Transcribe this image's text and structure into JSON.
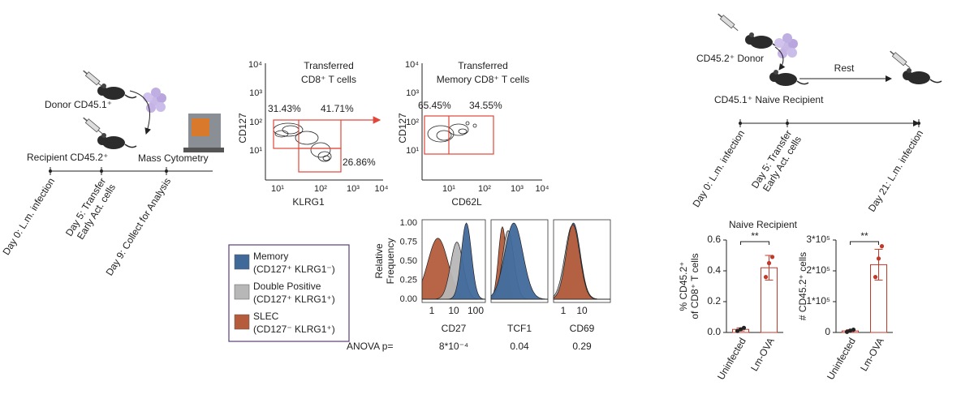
{
  "timeline_left": {
    "donor": "Donor CD45.1⁺",
    "recipient": "Recipient CD45.2⁺",
    "instrument": "Mass Cytometry",
    "days": [
      [
        "Day 0: L.m. infection"
      ],
      [
        "Day 5: Transfer",
        "Early Act. cells"
      ],
      [
        "Day 9: Collect for Analysis"
      ]
    ]
  },
  "flow_plots": [
    {
      "title": [
        "Transferred",
        "CD8⁺ T cells"
      ],
      "x_label": "KLRG1",
      "y_label": "CD127",
      "x_ticks": [
        "10¹",
        "10²",
        "10³",
        "10⁴"
      ],
      "y_ticks": [
        "10¹",
        "10²",
        "10³",
        "10⁴"
      ],
      "gates": [
        "31.43%",
        "41.71%",
        "26.86%"
      ]
    },
    {
      "title": [
        "Transferred",
        "Memory CD8⁺ T cells"
      ],
      "x_label": "CD62L",
      "y_label": "CD127",
      "x_ticks": [
        "10¹",
        "10²",
        "10³",
        "10⁴"
      ],
      "y_ticks": [
        "10¹",
        "10²",
        "10³",
        "10⁴"
      ],
      "gates": [
        "65.45%",
        "34.55%"
      ]
    }
  ],
  "legend": {
    "entries": [
      {
        "label": [
          "Memory",
          "(CD127⁺ KLRG1⁻)"
        ],
        "color": "#40699a"
      },
      {
        "label": [
          "Double Positive",
          "(CD127⁺ KLRG1⁺)"
        ],
        "color": "#b7b7b7"
      },
      {
        "label": [
          "SLEC",
          "(CD127⁻ KLRG1⁺)"
        ],
        "color": "#b45c3c"
      }
    ]
  },
  "histograms": {
    "y_label": [
      "Relative",
      "Frequency"
    ],
    "y_ticks": [
      "1.00",
      "0.75",
      "0.50",
      "0.25",
      "0.00"
    ],
    "anova_label": "ANOVA p=",
    "panels": [
      {
        "marker": "CD27",
        "x_ticks": [
          "1",
          "10",
          "100"
        ],
        "anova": "8*10⁻⁴"
      },
      {
        "marker": "TCF1",
        "anova": "0.04"
      },
      {
        "marker": "CD69",
        "x_ticks": [
          "1",
          "10"
        ],
        "anova": "0.29"
      }
    ]
  },
  "timeline_right": {
    "donor": "CD45.2⁺ Donor",
    "rest": "Rest",
    "recipient": "CD45.1⁺ Naive Recipient",
    "days": [
      [
        "Day 0: L.m. infection"
      ],
      [
        "Day 5: Transfer",
        "Early Act. cells"
      ],
      [
        "Day 21: L.m. infection"
      ]
    ]
  },
  "bar_panel_title": "Naive Recipient",
  "chart_data": [
    {
      "type": "bar",
      "y_label": [
        "% CD45.2⁺",
        "of CD8⁺ T cells"
      ],
      "categories": [
        "Uninfected",
        "Lm-OVA"
      ],
      "values": [
        0.02,
        0.42
      ],
      "errors": [
        0.01,
        0.08
      ],
      "points": [
        [
          0.01,
          0.02,
          0.03
        ],
        [
          0.36,
          0.45,
          0.49
        ]
      ],
      "point_colors": [
        "#222222",
        "#c0392b"
      ],
      "color": "#c0392b",
      "significance": "**",
      "ylim": [
        0,
        0.6
      ],
      "yticks": [
        {
          "value": 0,
          "label": "0.0"
        },
        0.2,
        0.4,
        0.6
      ]
    },
    {
      "type": "bar",
      "y_label": [
        "# CD45.2⁺ cells"
      ],
      "categories": [
        "Uninfected",
        "Lm-OVA"
      ],
      "values": [
        5000,
        220000
      ],
      "errors": [
        4000,
        50000
      ],
      "points": [
        [
          2000,
          6000,
          9000
        ],
        [
          180000,
          240000,
          280000
        ]
      ],
      "point_colors": [
        "#222222",
        "#c0392b"
      ],
      "color": "#c0392b",
      "significance": "**",
      "ylim": [
        0,
        300000
      ],
      "yticks": [
        0,
        {
          "value": 100000,
          "label": "1*10⁵"
        },
        {
          "value": 200000,
          "label": "2*10⁵"
        },
        {
          "value": 300000,
          "label": "3*10⁵"
        }
      ]
    }
  ]
}
